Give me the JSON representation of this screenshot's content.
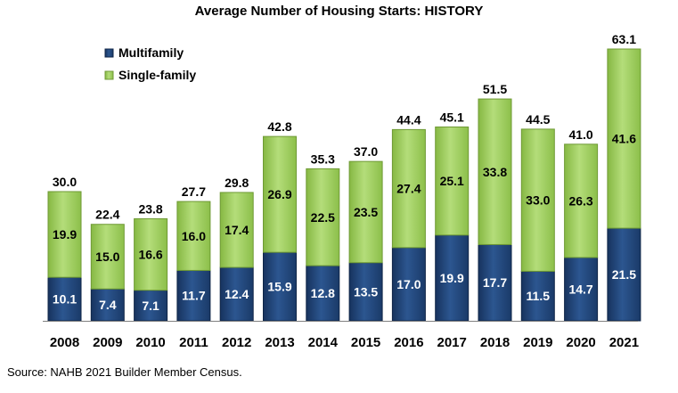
{
  "chart_data": {
    "type": "bar",
    "stacked": true,
    "title": "Average Number of Housing Starts: HISTORY",
    "categories": [
      "2008",
      "2009",
      "2010",
      "2011",
      "2012",
      "2013",
      "2014",
      "2015",
      "2016",
      "2017",
      "2018",
      "2019",
      "2020",
      "2021"
    ],
    "series": [
      {
        "name": "Multifamily",
        "color": "#1f3f73",
        "values": [
          10.1,
          7.4,
          7.1,
          11.7,
          12.4,
          15.9,
          12.8,
          13.5,
          17.0,
          19.9,
          17.7,
          11.5,
          14.7,
          21.5
        ]
      },
      {
        "name": "Single-family",
        "color": "#9bca5c",
        "values": [
          19.9,
          15.0,
          16.6,
          16.0,
          17.4,
          26.9,
          22.5,
          23.5,
          27.4,
          25.1,
          33.8,
          33.0,
          26.3,
          41.6
        ]
      }
    ],
    "totals": [
      30.0,
      22.4,
      23.8,
      27.7,
      29.8,
      42.8,
      35.3,
      37.0,
      44.4,
      45.1,
      51.5,
      44.5,
      41.0,
      63.1
    ],
    "ylim": [
      0,
      63.1
    ],
    "grid": false,
    "legend": "top-left"
  },
  "source": "Source: NAHB 2021 Builder Member Census."
}
